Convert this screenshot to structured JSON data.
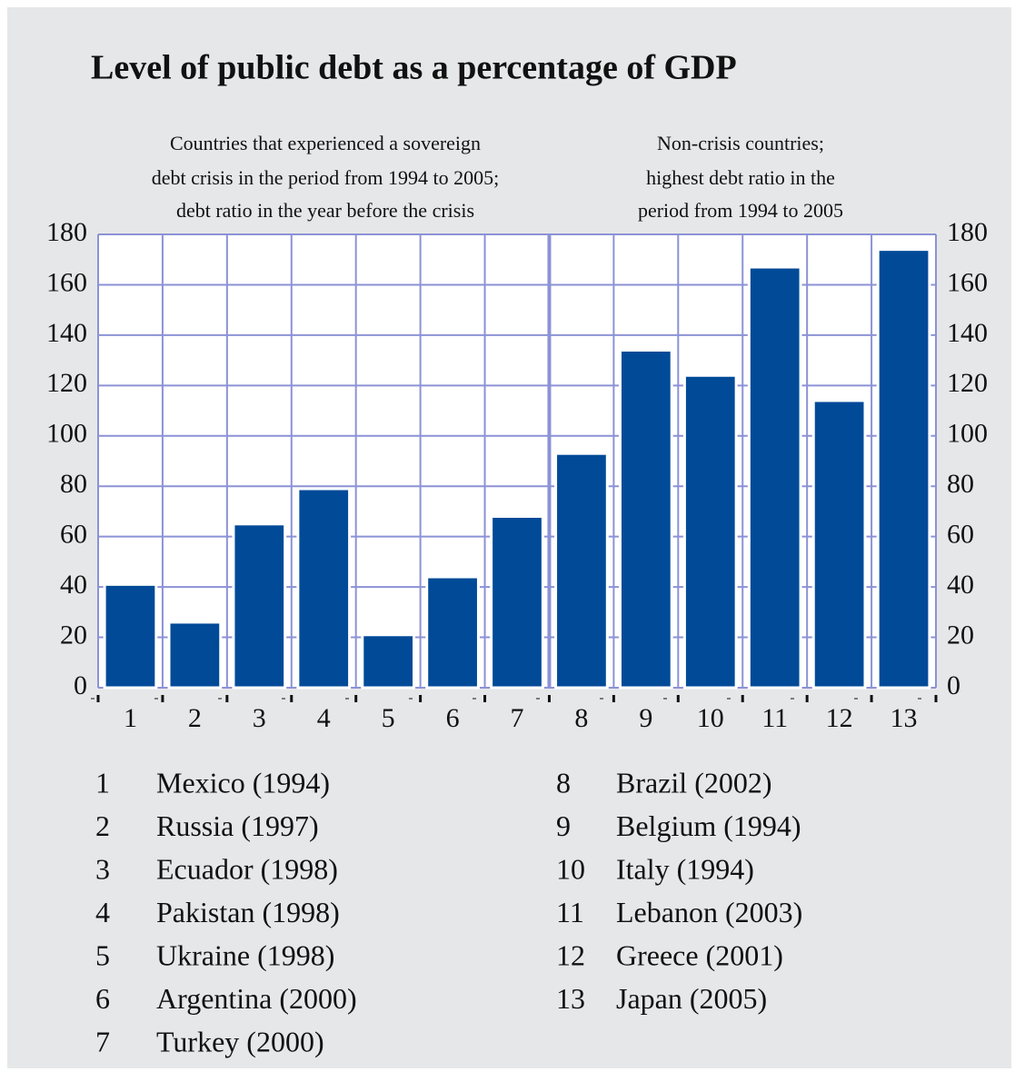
{
  "chart_data": {
    "type": "bar",
    "title": "Level of public debt as a percentage of GDP",
    "annotations": [
      "Countries that experienced a sovereign",
      "debt crisis in the period from 1994 to 2005;",
      "debt ratio in the year before the crisis",
      "Non-crisis countries;",
      "highest debt ratio in the",
      "period from 1994 to 2005"
    ],
    "categories": [
      "1",
      "2",
      "3",
      "4",
      "5",
      "6",
      "7",
      "8",
      "9",
      "10",
      "11",
      "12",
      "13"
    ],
    "values": [
      41,
      26,
      65,
      79,
      21,
      44,
      68,
      93,
      134,
      124,
      167,
      114,
      174
    ],
    "country_labels": [
      "Mexico (1994)",
      "Russia (1997)",
      "Ecuador (1998)",
      "Pakistan (1998)",
      "Ukraine (1998)",
      "Argentina (2000)",
      "Turkey (2000)",
      "Brazil (2002)",
      "Belgium (1994)",
      "Italy (1994)",
      "Lebanon (2003)",
      "Greece (2001)",
      "Japan (2005)"
    ],
    "color": "#004a98",
    "ylim": [
      0,
      180
    ],
    "yticks": [
      0,
      20,
      40,
      60,
      80,
      100,
      120,
      140,
      160,
      180
    ],
    "grid": true
  }
}
